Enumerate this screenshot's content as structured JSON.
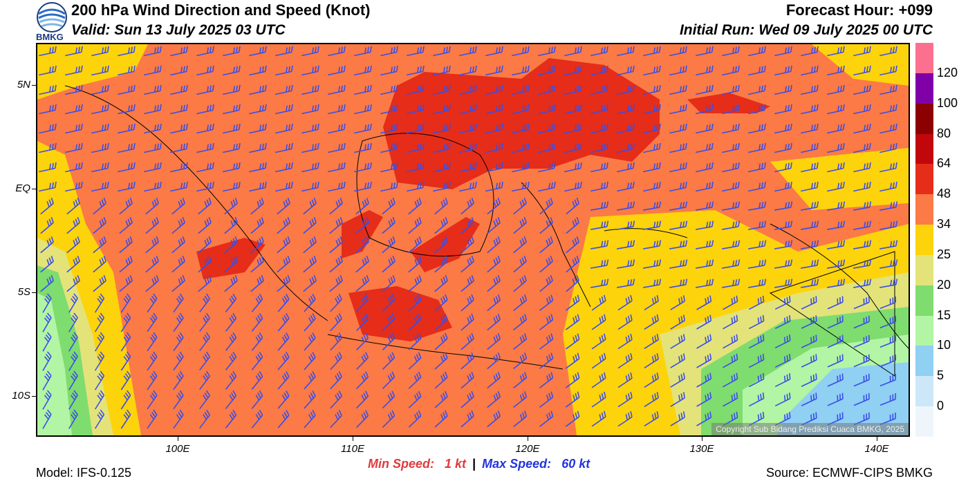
{
  "header": {
    "title": "200 hPa Wind Direction and Speed (Knot)",
    "valid": "Valid: Sun 13 July 2025 03 UTC",
    "forecast_hour": "Forecast Hour: +099",
    "initial_run": "Initial Run: Wed 09 July 2025 00 UTC",
    "logo_text": "BMKG"
  },
  "map": {
    "lat_labels": [
      "5N",
      "EQ",
      "5S",
      "10S"
    ],
    "lon_labels": [
      "100E",
      "110E",
      "120E",
      "130E",
      "140E"
    ],
    "copyright": "Copyright Sub Bidang Prediksi Cuaca BMKG, 2025",
    "barb_color": "#3a4ee6"
  },
  "colorbar": {
    "labels": [
      "0",
      "5",
      "10",
      "15",
      "20",
      "25",
      "34",
      "48",
      "64",
      "80",
      "100",
      "120"
    ],
    "colors": [
      "#eef6fc",
      "#cce8f8",
      "#8fd0f3",
      "#b2f5a4",
      "#7fdc6e",
      "#e3e37a",
      "#fdd30c",
      "#fb7a45",
      "#e52d19",
      "#c1070b",
      "#8b0000",
      "#8000a8",
      "#fb6f8f"
    ]
  },
  "footer": {
    "model": "Model: IFS-0.125",
    "min_label": "Min Speed:",
    "min_value": "1 kt",
    "separator": "|",
    "max_label": "Max Speed:",
    "max_value": "60 kt",
    "source": "Source: ECMWF-CIPS BMKG",
    "min_color": "#e03a3a",
    "max_color": "#2233dd"
  }
}
